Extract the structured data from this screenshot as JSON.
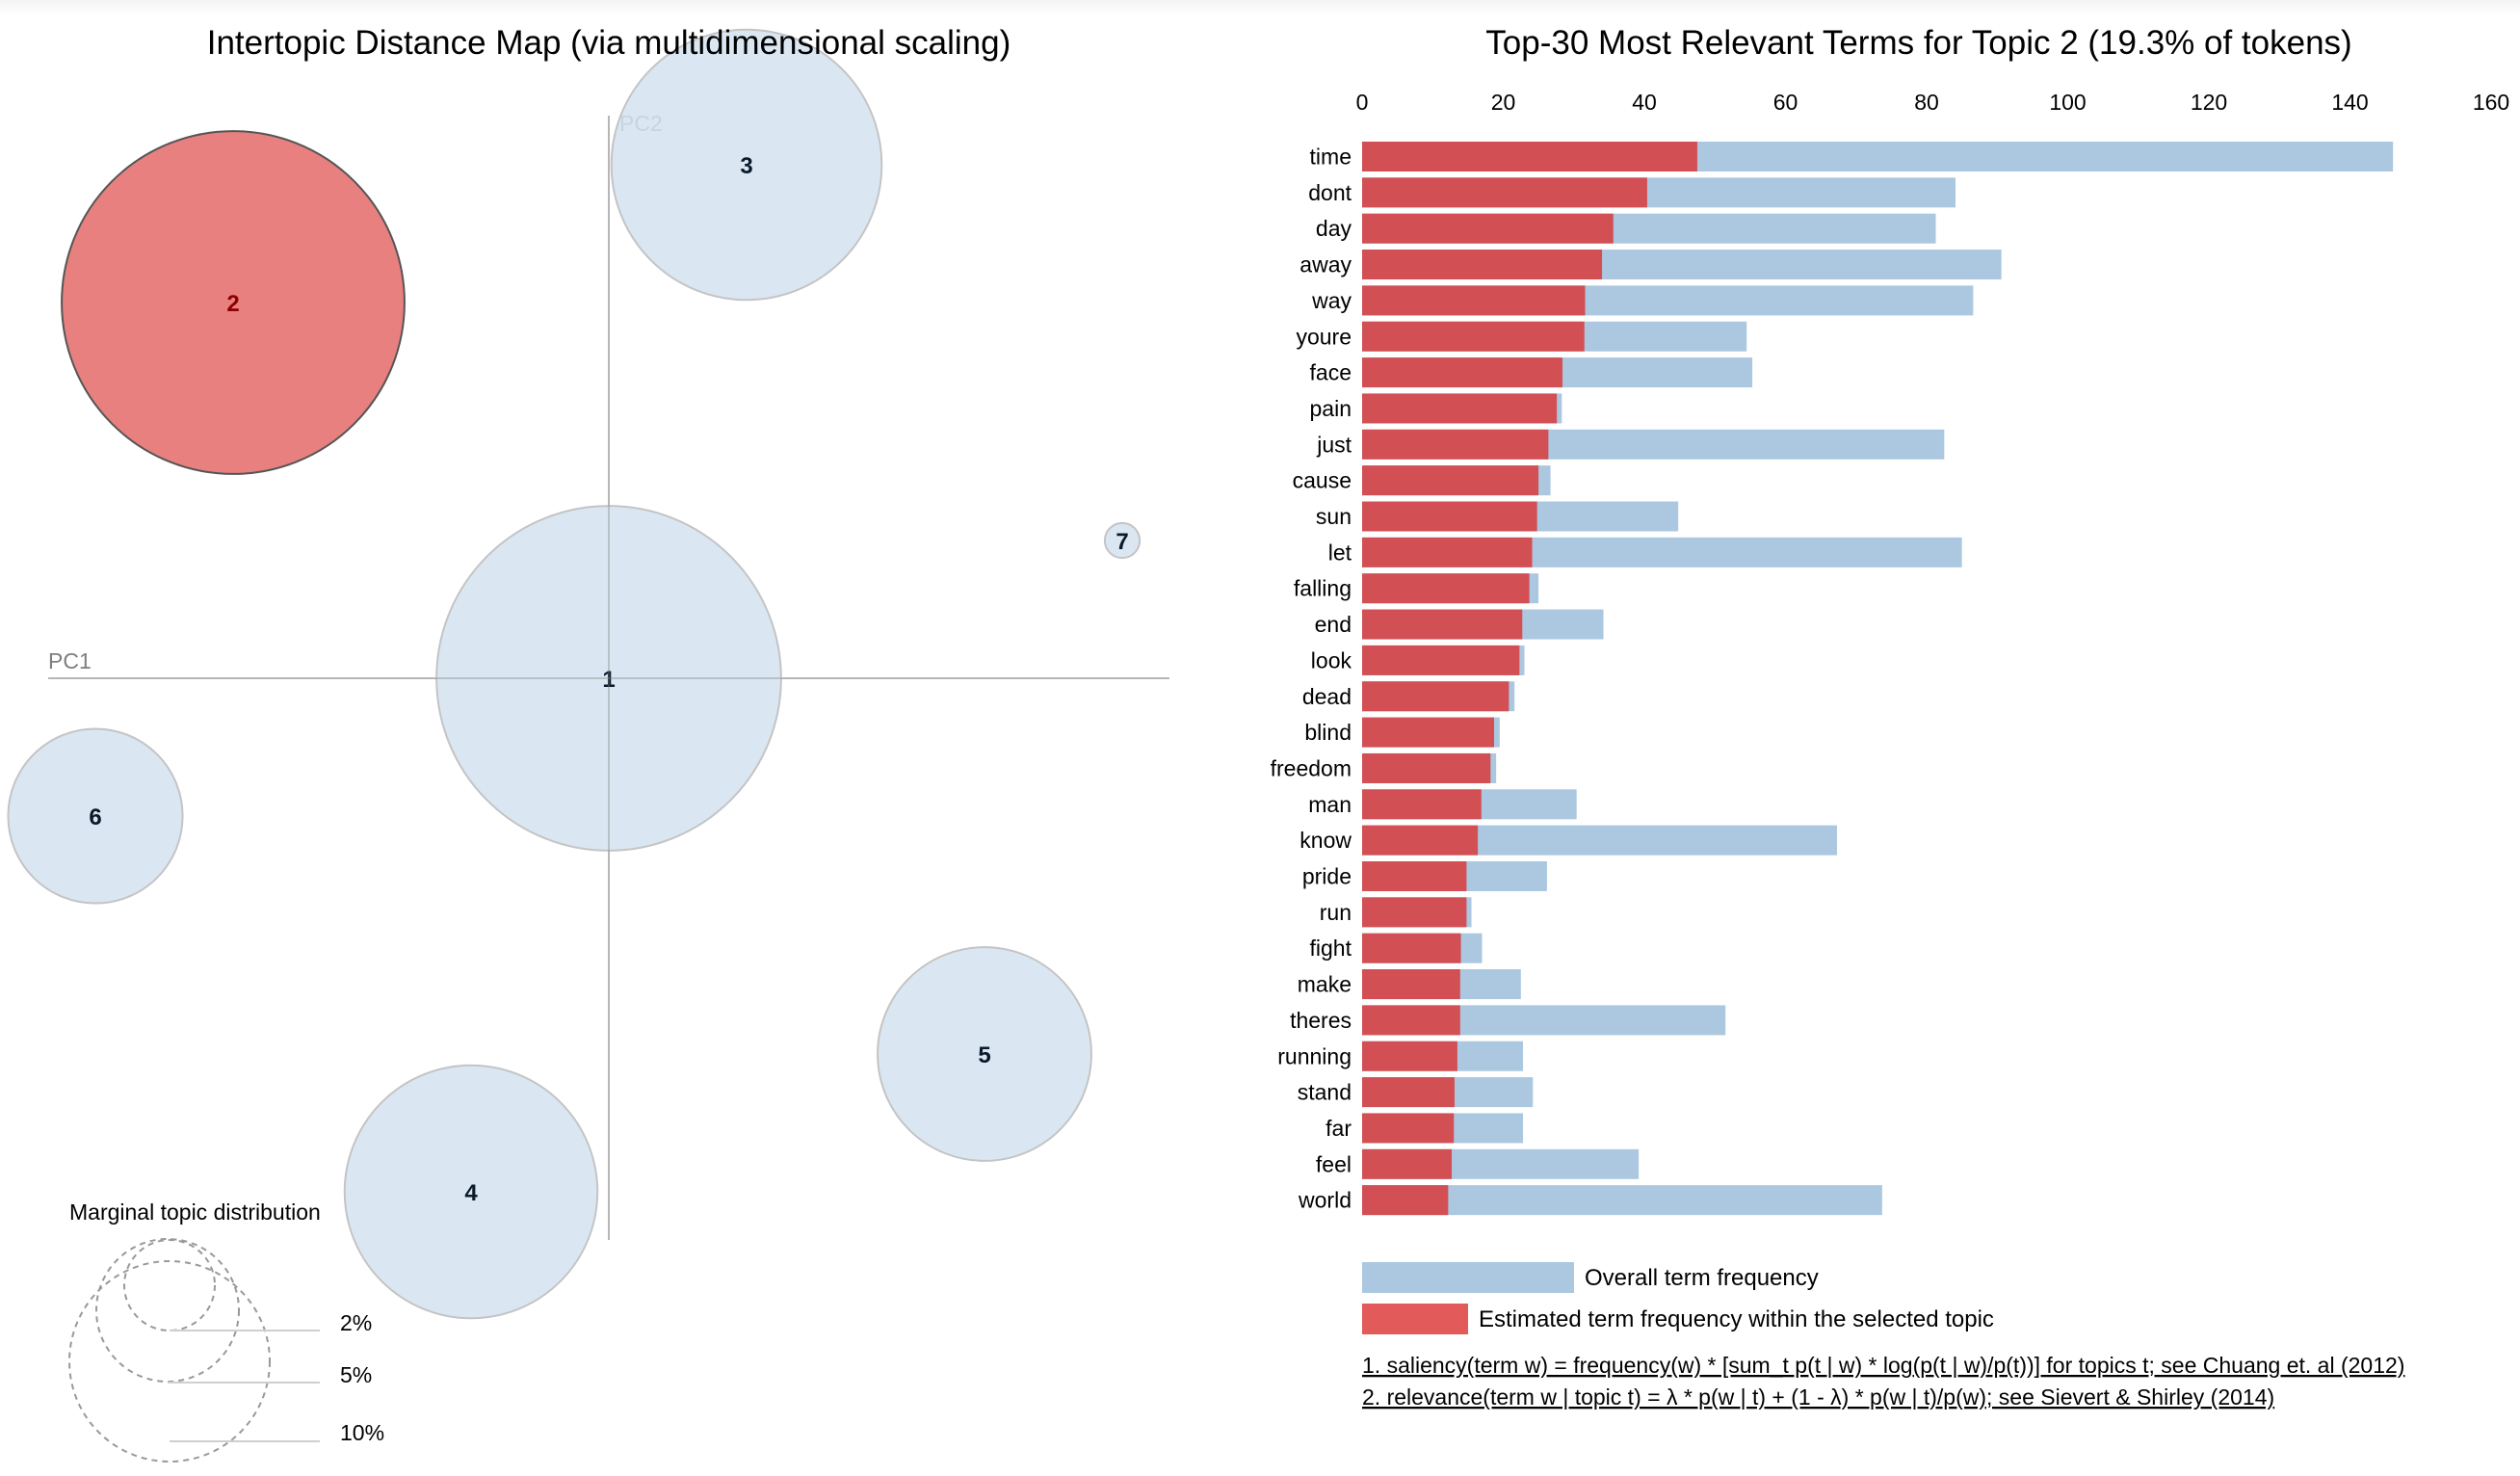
{
  "left_panel": {
    "title": "Intertopic Distance Map (via multidimensional scaling)",
    "pc1_label": "PC1",
    "pc2_label": "PC2",
    "selected_topic": 2,
    "marginal_legend": {
      "title": "Marginal topic distribution",
      "levels": [
        "2%",
        "5%",
        "10%"
      ]
    }
  },
  "right_panel": {
    "legend": {
      "overall": "Overall term frequency",
      "estimated": "Estimated term frequency within the selected topic"
    },
    "notes": [
      "1. saliency(term w) = frequency(w) * [sum_t p(t | w) * log(p(t | w)/p(t))] for topics t; see Chuang et. al (2012)",
      "2. relevance(term w | topic t) = λ * p(w | t) + (1 - λ) * p(w | t)/p(w); see Sievert & Shirley (2014)"
    ]
  },
  "colors": {
    "overall": "#abc8e0",
    "estimated": "#d24f54",
    "estimated_legend": "#e35a5a",
    "topic_fill": "#d3e3f0",
    "topic_selected_fill": "#e8807f",
    "topic_stroke": "#c4c4c4",
    "topic_selected_stroke": "#555555",
    "axis": "#d0d0d0"
  },
  "chart_data": [
    {
      "type": "scatter",
      "title": "Intertopic Distance Map (via multidimensional scaling)",
      "xlabel": "PC1",
      "ylabel": "PC2",
      "topics": [
        {
          "id": "1",
          "pc1": 0.0,
          "pc2": 0.0,
          "marginal_pct": 19.5
        },
        {
          "id": "2",
          "pc1": -0.6,
          "pc2": 0.6,
          "marginal_pct": 19.3
        },
        {
          "id": "3",
          "pc1": 0.22,
          "pc2": 0.82,
          "marginal_pct": 12.0
        },
        {
          "id": "4",
          "pc1": -0.22,
          "pc2": -0.82,
          "marginal_pct": 10.5
        },
        {
          "id": "5",
          "pc1": 0.6,
          "pc2": -0.6,
          "marginal_pct": 7.5
        },
        {
          "id": "6",
          "pc1": -0.82,
          "pc2": -0.22,
          "marginal_pct": 5.0
        },
        {
          "id": "7",
          "pc1": 0.82,
          "pc2": 0.22,
          "marginal_pct": 0.2
        }
      ]
    },
    {
      "type": "bar",
      "orientation": "horizontal",
      "title": "Top-30 Most Relevant Terms for Topic 2 (19.3% of tokens)",
      "xlim": [
        0,
        160
      ],
      "xticks": [
        0,
        20,
        40,
        60,
        80,
        100,
        120,
        140,
        160
      ],
      "legend": "bottom",
      "categories": [
        "time",
        "dont",
        "day",
        "away",
        "way",
        "youre",
        "face",
        "pain",
        "just",
        "cause",
        "sun",
        "let",
        "falling",
        "end",
        "look",
        "dead",
        "blind",
        "freedom",
        "man",
        "know",
        "pride",
        "run",
        "fight",
        "make",
        "theres",
        "running",
        "stand",
        "far",
        "feel",
        "world"
      ],
      "series": [
        {
          "name": "Overall term frequency",
          "values": [
            146.1,
            84.1,
            81.3,
            90.6,
            86.6,
            54.5,
            55.3,
            28.3,
            82.5,
            26.7,
            44.8,
            85.0,
            25.0,
            34.2,
            23.0,
            21.6,
            19.5,
            19.0,
            30.4,
            67.3,
            26.2,
            15.5,
            17.0,
            22.5,
            51.5,
            22.8,
            24.2,
            22.8,
            39.2,
            73.7
          ]
        },
        {
          "name": "Estimated term frequency within the selected topic",
          "values": [
            47.5,
            40.4,
            35.6,
            34.0,
            31.6,
            31.5,
            28.4,
            27.6,
            26.4,
            25.0,
            24.8,
            24.1,
            23.7,
            22.7,
            22.3,
            20.8,
            18.7,
            18.2,
            16.9,
            16.4,
            14.8,
            14.8,
            14.0,
            13.9,
            13.9,
            13.5,
            13.1,
            13.0,
            12.7,
            12.2
          ]
        }
      ]
    }
  ]
}
